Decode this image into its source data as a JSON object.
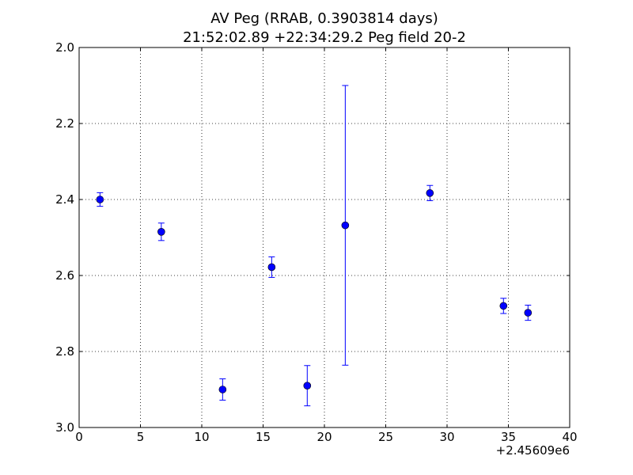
{
  "chart_data": {
    "type": "scatter",
    "title": "AV Peg (RRAB, 0.3903814 days)",
    "subtitle": "21:52:02.89 +22:34:29.2 Peg field 20-2",
    "xlabel": "",
    "ylabel": "",
    "x_offset_label": "+2.45609e6",
    "xlim": [
      0,
      40
    ],
    "ylim": [
      2.0,
      3.0
    ],
    "y_inverted": true,
    "grid": true,
    "x_ticks": [
      0,
      5,
      10,
      15,
      20,
      25,
      30,
      35,
      40
    ],
    "x_tick_labels": [
      "0",
      "5",
      "10",
      "15",
      "20",
      "25",
      "30",
      "35",
      "40"
    ],
    "y_ticks": [
      2.0,
      2.2,
      2.4,
      2.6,
      2.8,
      3.0
    ],
    "y_tick_labels": [
      "2.0",
      "2.2",
      "2.4",
      "2.6",
      "2.8",
      "3.0"
    ],
    "marker_color": "#0000ff",
    "errorbar_color": "#0000ff",
    "points": [
      {
        "x": 1.7,
        "y": 2.4,
        "err": 0.018
      },
      {
        "x": 6.7,
        "y": 2.485,
        "err": 0.023
      },
      {
        "x": 11.7,
        "y": 2.9,
        "err": 0.028
      },
      {
        "x": 15.7,
        "y": 2.578,
        "err": 0.027
      },
      {
        "x": 18.6,
        "y": 2.89,
        "err": 0.053
      },
      {
        "x": 21.7,
        "y": 2.468,
        "err": 0.368
      },
      {
        "x": 28.6,
        "y": 2.383,
        "err": 0.02
      },
      {
        "x": 34.6,
        "y": 2.68,
        "err": 0.02
      },
      {
        "x": 36.6,
        "y": 2.698,
        "err": 0.02
      }
    ]
  }
}
